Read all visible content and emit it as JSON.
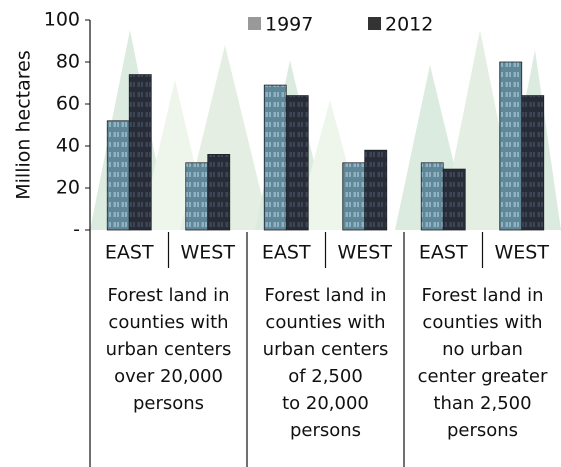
{
  "chart_data": {
    "type": "bar",
    "y_label": "Million hectares",
    "categories": [
      "EAST",
      "WEST",
      "EAST",
      "WEST",
      "EAST",
      "WEST"
    ],
    "groups": [
      "Forest land in\ncounties with\nurban centers\nover 20,000\npersons",
      "Forest land in\ncounties with\nurban centers\nof 2,500\nto 20,000\npersons",
      "Forest land in\ncounties with\nno urban\ncenter greater\nthan 2,500\npersons"
    ],
    "series": [
      {
        "name": "1997",
        "color": "#5f8797",
        "values": [
          52,
          32,
          69,
          32,
          32,
          80
        ]
      },
      {
        "name": "2012",
        "color": "#272c36",
        "values": [
          74,
          36,
          64,
          38,
          29,
          64
        ]
      }
    ],
    "ylim": [
      0,
      100
    ],
    "yticks": [
      {
        "value": 0,
        "label": "-"
      },
      20,
      40,
      60,
      80,
      100
    ]
  }
}
